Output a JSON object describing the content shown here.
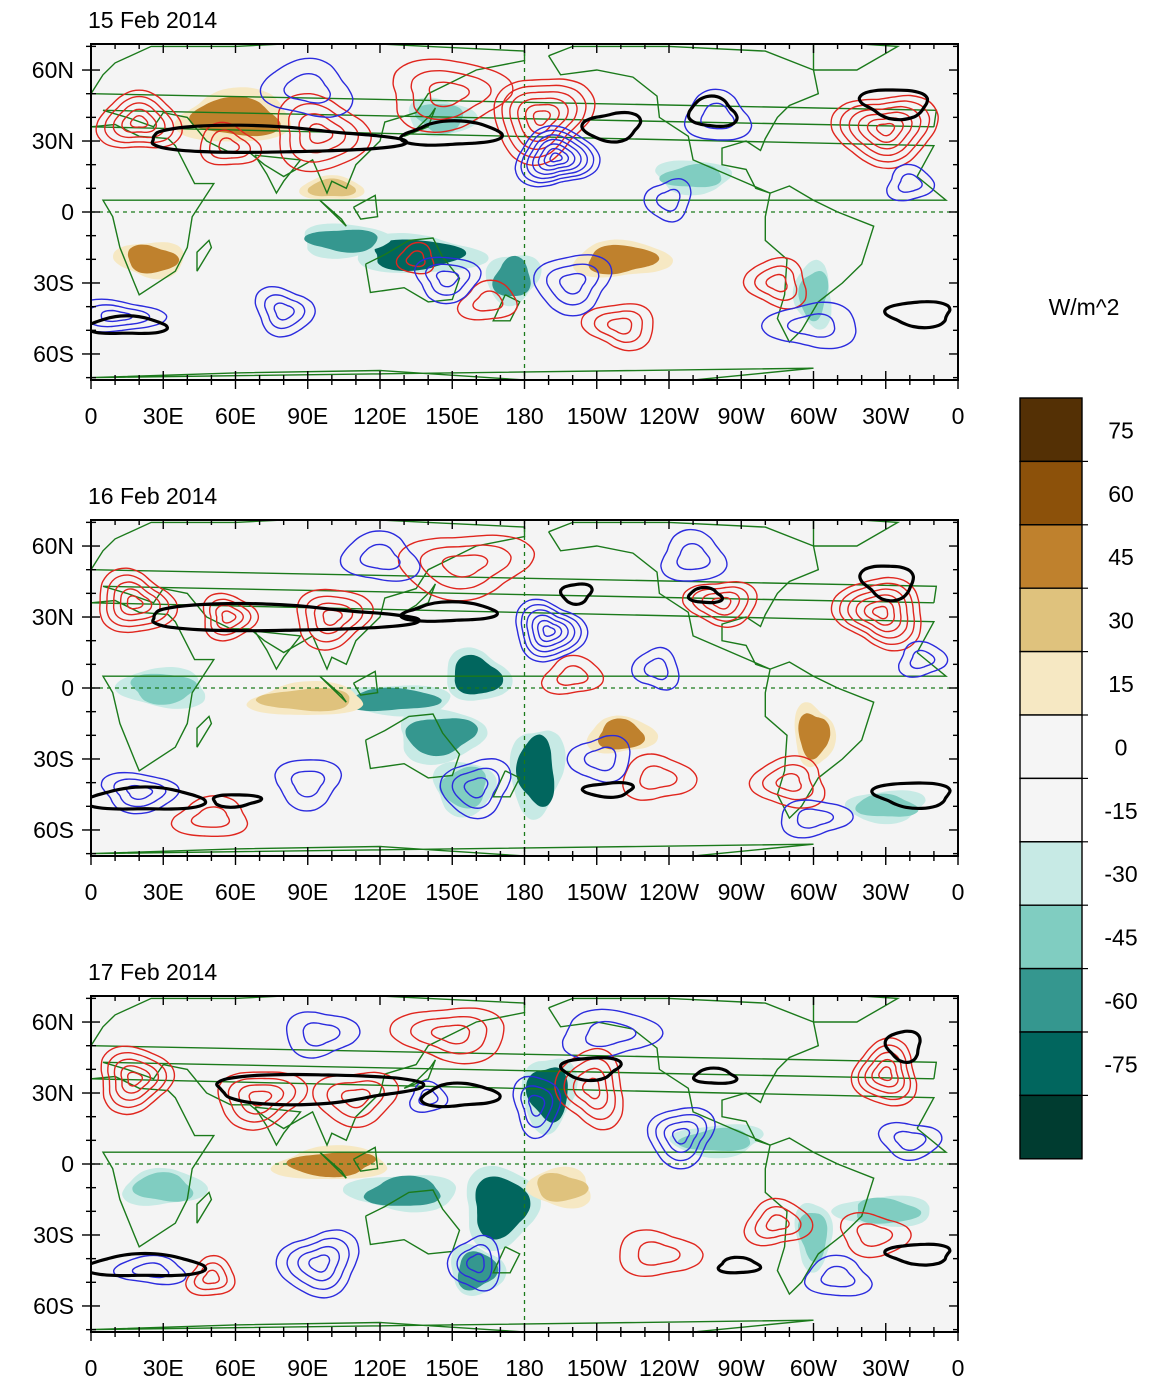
{
  "panels": [
    {
      "title": "15 Feb 2014",
      "blobs": [
        {
          "lon": 100,
          "lat": 10,
          "rx": 9,
          "ry": 4,
          "c": 3
        },
        {
          "lon": 135,
          "lat": -18,
          "rx": 20,
          "ry": 6,
          "c": 10
        },
        {
          "lon": 105,
          "lat": -12,
          "rx": 14,
          "ry": 5,
          "c": 9
        },
        {
          "lon": 175,
          "lat": -28,
          "rx": 8,
          "ry": 8,
          "c": 9
        },
        {
          "lon": 25,
          "lat": -20,
          "rx": 10,
          "ry": 6,
          "c": 2
        },
        {
          "lon": 300,
          "lat": -35,
          "rx": 6,
          "ry": 10,
          "c": 8
        },
        {
          "lon": 60,
          "lat": 40,
          "rx": 18,
          "ry": 8,
          "c": 2
        },
        {
          "lon": 220,
          "lat": -20,
          "rx": 14,
          "ry": 6,
          "c": 2
        },
        {
          "lon": 145,
          "lat": 40,
          "rx": 10,
          "ry": 6,
          "c": 8
        },
        {
          "lon": 250,
          "lat": 15,
          "rx": 12,
          "ry": 5,
          "c": 8
        }
      ],
      "contours": [
        {
          "lon": 20,
          "lat": 38,
          "rx": 16,
          "ry": 13,
          "n": 5,
          "col": "#e0261e"
        },
        {
          "lon": 57,
          "lat": 28,
          "rx": 12,
          "ry": 9,
          "n": 3,
          "col": "#e0261e"
        },
        {
          "lon": 95,
          "lat": 33,
          "rx": 20,
          "ry": 15,
          "n": 4,
          "col": "#e0261e"
        },
        {
          "lon": 148,
          "lat": 50,
          "rx": 26,
          "ry": 14,
          "n": 3,
          "col": "#e0261e"
        },
        {
          "lon": 187,
          "lat": 40,
          "rx": 20,
          "ry": 18,
          "n": 6,
          "col": "#e0261e"
        },
        {
          "lon": 330,
          "lat": 35,
          "rx": 20,
          "ry": 16,
          "n": 6,
          "col": "#e0261e"
        },
        {
          "lon": 220,
          "lat": -48,
          "rx": 14,
          "ry": 10,
          "n": 3,
          "col": "#e0261e"
        },
        {
          "lon": 285,
          "lat": -30,
          "rx": 13,
          "ry": 10,
          "n": 3,
          "col": "#e0261e"
        },
        {
          "lon": 135,
          "lat": -20,
          "rx": 8,
          "ry": 6,
          "n": 2,
          "col": "#e0261e"
        },
        {
          "lon": 165,
          "lat": -38,
          "rx": 12,
          "ry": 8,
          "n": 2,
          "col": "#e0261e"
        },
        {
          "lon": 193,
          "lat": 23,
          "rx": 16,
          "ry": 13,
          "n": 7,
          "col": "#2b2bde"
        },
        {
          "lon": 10,
          "lat": -44,
          "rx": 18,
          "ry": 7,
          "n": 3,
          "col": "#2b2bde"
        },
        {
          "lon": 80,
          "lat": -42,
          "rx": 12,
          "ry": 10,
          "n": 3,
          "col": "#2b2bde"
        },
        {
          "lon": 148,
          "lat": -28,
          "rx": 14,
          "ry": 9,
          "n": 3,
          "col": "#2b2bde"
        },
        {
          "lon": 200,
          "lat": -30,
          "rx": 16,
          "ry": 12,
          "n": 3,
          "col": "#2b2bde"
        },
        {
          "lon": 240,
          "lat": 5,
          "rx": 9,
          "ry": 9,
          "n": 2,
          "col": "#2b2bde"
        },
        {
          "lon": 300,
          "lat": -48,
          "rx": 18,
          "ry": 10,
          "n": 2,
          "col": "#2b2bde"
        },
        {
          "lon": 90,
          "lat": 52,
          "rx": 18,
          "ry": 12,
          "n": 2,
          "col": "#2b2bde"
        },
        {
          "lon": 260,
          "lat": 40,
          "rx": 14,
          "ry": 10,
          "n": 2,
          "col": "#2b2bde"
        },
        {
          "lon": 340,
          "lat": 12,
          "rx": 10,
          "ry": 7,
          "n": 2,
          "col": "#2b2bde"
        }
      ],
      "jet": [
        {
          "lon0": 20,
          "lon1": 125,
          "lat0": 25,
          "lat1": 36
        },
        {
          "lon0": 130,
          "lon1": 170,
          "lat0": 28,
          "lat1": 38
        },
        {
          "lon0": 205,
          "lon1": 228,
          "lat0": 30,
          "lat1": 42
        },
        {
          "lon0": 248,
          "lon1": 268,
          "lat0": 36,
          "lat1": 48
        },
        {
          "lon0": 320,
          "lon1": 348,
          "lat0": 40,
          "lat1": 52
        },
        {
          "lon0": 0,
          "lon1": 30,
          "lat0": -52,
          "lat1": -44
        },
        {
          "lon0": 330,
          "lon1": 358,
          "lat0": -48,
          "lat1": -38
        }
      ]
    },
    {
      "title": "16 Feb 2014",
      "blobs": [
        {
          "lon": 160,
          "lat": 5,
          "rx": 10,
          "ry": 8,
          "c": 10
        },
        {
          "lon": 145,
          "lat": -20,
          "rx": 14,
          "ry": 8,
          "c": 9
        },
        {
          "lon": 185,
          "lat": -35,
          "rx": 8,
          "ry": 14,
          "c": 10
        },
        {
          "lon": 125,
          "lat": -5,
          "rx": 18,
          "ry": 5,
          "c": 9
        },
        {
          "lon": 30,
          "lat": 0,
          "rx": 14,
          "ry": 6,
          "c": 8
        },
        {
          "lon": 90,
          "lat": -5,
          "rx": 18,
          "ry": 5,
          "c": 3
        },
        {
          "lon": 220,
          "lat": -20,
          "rx": 10,
          "ry": 6,
          "c": 2
        },
        {
          "lon": 300,
          "lat": -20,
          "rx": 6,
          "ry": 10,
          "c": 2
        },
        {
          "lon": 155,
          "lat": -42,
          "rx": 10,
          "ry": 8,
          "c": 8
        },
        {
          "lon": 330,
          "lat": -50,
          "rx": 12,
          "ry": 5,
          "c": 8
        }
      ],
      "contours": [
        {
          "lon": 18,
          "lat": 36,
          "rx": 16,
          "ry": 13,
          "n": 5,
          "col": "#e0261e"
        },
        {
          "lon": 57,
          "lat": 30,
          "rx": 12,
          "ry": 9,
          "n": 4,
          "col": "#e0261e"
        },
        {
          "lon": 100,
          "lat": 30,
          "rx": 16,
          "ry": 12,
          "n": 4,
          "col": "#e0261e"
        },
        {
          "lon": 155,
          "lat": 52,
          "rx": 26,
          "ry": 14,
          "n": 3,
          "col": "#e0261e"
        },
        {
          "lon": 262,
          "lat": 36,
          "rx": 14,
          "ry": 10,
          "n": 4,
          "col": "#e0261e"
        },
        {
          "lon": 328,
          "lat": 32,
          "rx": 18,
          "ry": 15,
          "n": 6,
          "col": "#e0261e"
        },
        {
          "lon": 290,
          "lat": -40,
          "rx": 16,
          "ry": 10,
          "n": 3,
          "col": "#e0261e"
        },
        {
          "lon": 50,
          "lat": -55,
          "rx": 16,
          "ry": 8,
          "n": 2,
          "col": "#e0261e"
        },
        {
          "lon": 200,
          "lat": 5,
          "rx": 12,
          "ry": 8,
          "n": 2,
          "col": "#e0261e"
        },
        {
          "lon": 235,
          "lat": -38,
          "rx": 14,
          "ry": 10,
          "n": 2,
          "col": "#e0261e"
        },
        {
          "lon": 190,
          "lat": 24,
          "rx": 14,
          "ry": 13,
          "n": 6,
          "col": "#2b2bde"
        },
        {
          "lon": 20,
          "lat": -44,
          "rx": 16,
          "ry": 8,
          "n": 3,
          "col": "#2b2bde"
        },
        {
          "lon": 90,
          "lat": -40,
          "rx": 14,
          "ry": 10,
          "n": 2,
          "col": "#2b2bde"
        },
        {
          "lon": 160,
          "lat": -42,
          "rx": 14,
          "ry": 12,
          "n": 3,
          "col": "#2b2bde"
        },
        {
          "lon": 212,
          "lat": -30,
          "rx": 12,
          "ry": 10,
          "n": 2,
          "col": "#2b2bde"
        },
        {
          "lon": 235,
          "lat": 8,
          "rx": 9,
          "ry": 9,
          "n": 2,
          "col": "#2b2bde"
        },
        {
          "lon": 120,
          "lat": 55,
          "rx": 16,
          "ry": 10,
          "n": 2,
          "col": "#2b2bde"
        },
        {
          "lon": 250,
          "lat": 55,
          "rx": 14,
          "ry": 10,
          "n": 2,
          "col": "#2b2bde"
        },
        {
          "lon": 345,
          "lat": 12,
          "rx": 10,
          "ry": 7,
          "n": 2,
          "col": "#2b2bde"
        },
        {
          "lon": 300,
          "lat": -55,
          "rx": 14,
          "ry": 8,
          "n": 2,
          "col": "#2b2bde"
        }
      ],
      "jet": [
        {
          "lon0": 20,
          "lon1": 130,
          "lat0": 24,
          "lat1": 35
        },
        {
          "lon0": 130,
          "lon1": 168,
          "lat0": 28,
          "lat1": 36
        },
        {
          "lon0": 195,
          "lon1": 208,
          "lat0": 36,
          "lat1": 44
        },
        {
          "lon0": 248,
          "lon1": 262,
          "lat0": 36,
          "lat1": 42
        },
        {
          "lon0": 320,
          "lon1": 342,
          "lat0": 38,
          "lat1": 52
        },
        {
          "lon0": 0,
          "lon1": 45,
          "lat0": -52,
          "lat1": -42
        },
        {
          "lon0": 50,
          "lon1": 70,
          "lat0": -50,
          "lat1": -45
        },
        {
          "lon0": 205,
          "lon1": 225,
          "lat0": -46,
          "lat1": -40
        },
        {
          "lon0": 325,
          "lon1": 358,
          "lat0": -50,
          "lat1": -40
        }
      ]
    },
    {
      "title": "17 Feb 2014",
      "blobs": [
        {
          "lon": 170,
          "lat": -18,
          "rx": 12,
          "ry": 12,
          "c": 10
        },
        {
          "lon": 190,
          "lat": 30,
          "rx": 8,
          "ry": 12,
          "c": 10
        },
        {
          "lon": 130,
          "lat": -12,
          "rx": 16,
          "ry": 6,
          "c": 9
        },
        {
          "lon": 195,
          "lat": -10,
          "rx": 10,
          "ry": 6,
          "c": 3
        },
        {
          "lon": 100,
          "lat": 0,
          "rx": 18,
          "ry": 5,
          "c": 2
        },
        {
          "lon": 30,
          "lat": -10,
          "rx": 12,
          "ry": 6,
          "c": 8
        },
        {
          "lon": 160,
          "lat": -45,
          "rx": 8,
          "ry": 8,
          "c": 9
        },
        {
          "lon": 300,
          "lat": -30,
          "rx": 6,
          "ry": 10,
          "c": 8
        },
        {
          "lon": 260,
          "lat": 10,
          "rx": 14,
          "ry": 5,
          "c": 8
        },
        {
          "lon": 330,
          "lat": -20,
          "rx": 14,
          "ry": 5,
          "c": 8
        }
      ],
      "contours": [
        {
          "lon": 18,
          "lat": 36,
          "rx": 16,
          "ry": 13,
          "n": 5,
          "col": "#e0261e"
        },
        {
          "lon": 70,
          "lat": 28,
          "rx": 18,
          "ry": 12,
          "n": 4,
          "col": "#e0261e"
        },
        {
          "lon": 110,
          "lat": 28,
          "rx": 16,
          "ry": 12,
          "n": 3,
          "col": "#e0261e"
        },
        {
          "lon": 150,
          "lat": 55,
          "rx": 22,
          "ry": 12,
          "n": 3,
          "col": "#e0261e"
        },
        {
          "lon": 208,
          "lat": 32,
          "rx": 14,
          "ry": 16,
          "n": 4,
          "col": "#e0261e"
        },
        {
          "lon": 330,
          "lat": 38,
          "rx": 14,
          "ry": 13,
          "n": 5,
          "col": "#e0261e"
        },
        {
          "lon": 50,
          "lat": -48,
          "rx": 10,
          "ry": 8,
          "n": 3,
          "col": "#e0261e"
        },
        {
          "lon": 285,
          "lat": -25,
          "rx": 13,
          "ry": 10,
          "n": 3,
          "col": "#e0261e"
        },
        {
          "lon": 235,
          "lat": -38,
          "rx": 16,
          "ry": 10,
          "n": 2,
          "col": "#e0261e"
        },
        {
          "lon": 325,
          "lat": -30,
          "rx": 14,
          "ry": 9,
          "n": 2,
          "col": "#e0261e"
        },
        {
          "lon": 185,
          "lat": 25,
          "rx": 10,
          "ry": 12,
          "n": 3,
          "col": "#2b2bde"
        },
        {
          "lon": 245,
          "lat": 12,
          "rx": 14,
          "ry": 12,
          "n": 4,
          "col": "#2b2bde"
        },
        {
          "lon": 95,
          "lat": -42,
          "rx": 16,
          "ry": 14,
          "n": 4,
          "col": "#2b2bde"
        },
        {
          "lon": 160,
          "lat": -42,
          "rx": 10,
          "ry": 12,
          "n": 3,
          "col": "#2b2bde"
        },
        {
          "lon": 25,
          "lat": -45,
          "rx": 14,
          "ry": 6,
          "n": 2,
          "col": "#2b2bde"
        },
        {
          "lon": 310,
          "lat": -48,
          "rx": 14,
          "ry": 8,
          "n": 2,
          "col": "#2b2bde"
        },
        {
          "lon": 140,
          "lat": 28,
          "rx": 8,
          "ry": 6,
          "n": 2,
          "col": "#2b2bde"
        },
        {
          "lon": 215,
          "lat": 55,
          "rx": 20,
          "ry": 10,
          "n": 2,
          "col": "#2b2bde"
        },
        {
          "lon": 95,
          "lat": 55,
          "rx": 14,
          "ry": 10,
          "n": 2,
          "col": "#2b2bde"
        },
        {
          "lon": 340,
          "lat": 10,
          "rx": 12,
          "ry": 8,
          "n": 2,
          "col": "#2b2bde"
        }
      ],
      "jet": [
        {
          "lon0": 48,
          "lon1": 135,
          "lat0": 26,
          "lat1": 38
        },
        {
          "lon0": 138,
          "lon1": 168,
          "lat0": 24,
          "lat1": 34
        },
        {
          "lon0": 195,
          "lon1": 220,
          "lat0": 36,
          "lat1": 45
        },
        {
          "lon0": 250,
          "lon1": 268,
          "lat0": 34,
          "lat1": 40
        },
        {
          "lon0": 330,
          "lon1": 345,
          "lat0": 44,
          "lat1": 56
        },
        {
          "lon0": 0,
          "lon1": 45,
          "lat0": -48,
          "lat1": -38
        },
        {
          "lon0": 260,
          "lon1": 278,
          "lat0": -46,
          "lat1": -40
        },
        {
          "lon0": 330,
          "lon1": 358,
          "lat0": -42,
          "lat1": -34
        }
      ]
    }
  ],
  "lon_ticks": [
    "0",
    "30E",
    "60E",
    "90E",
    "120E",
    "150E",
    "180",
    "150W",
    "120W",
    "90W",
    "60W",
    "30W",
    "0"
  ],
  "lat_ticks": [
    {
      "lat": 60,
      "label": "60N"
    },
    {
      "lat": 30,
      "label": "30N"
    },
    {
      "lat": 0,
      "label": "0"
    },
    {
      "lat": -30,
      "label": "30S"
    },
    {
      "lat": -60,
      "label": "60S"
    }
  ],
  "colorbar": {
    "unit": "W/m^2",
    "labels": [
      "75",
      "60",
      "45",
      "30",
      "15",
      "0",
      "-15",
      "-30",
      "-45",
      "-60",
      "-75"
    ],
    "colors": [
      "#543005",
      "#8c510a",
      "#bf812d",
      "#dfc27d",
      "#f6e8c3",
      "#f5f5f5",
      "#f5f5f5",
      "#c7eae5",
      "#80cdc1",
      "#35978f",
      "#01665e",
      "#003c30"
    ]
  }
}
